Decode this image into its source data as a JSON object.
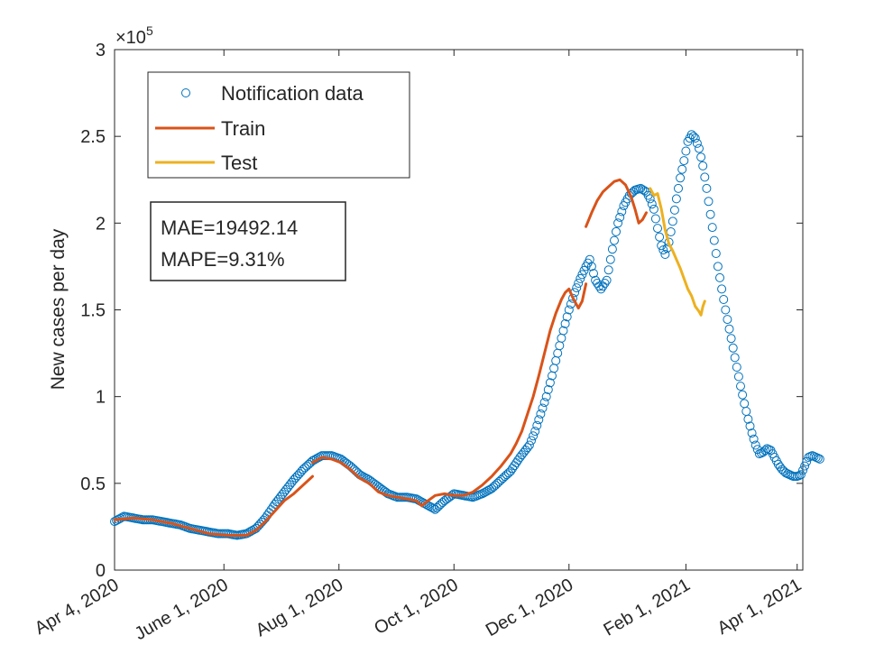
{
  "chart_data": {
    "type": "scatter+line",
    "title": "",
    "xlabel": "",
    "ylabel": "New cases per day",
    "y_exponent_label": "×10",
    "y_exponent": "5",
    "ylim": [
      0,
      3
    ],
    "y_ticks": [
      0,
      0.5,
      1,
      1.5,
      2,
      2.5,
      3
    ],
    "y_tick_labels": [
      "0",
      "0.5",
      "1",
      "1.5",
      "2",
      "2.5",
      "3"
    ],
    "xlim": [
      0,
      365
    ],
    "x_ticks": [
      0,
      58,
      119,
      180,
      241,
      303,
      362
    ],
    "x_tick_labels": [
      "Apr 4, 2020",
      "June 1, 2020",
      "Aug 1, 2020",
      "Oct 1, 2020",
      "Dec 1, 2020",
      "Feb 1, 2021",
      "Apr 1, 2021"
    ],
    "grid": false,
    "legend_position": "top-left",
    "legend": [
      {
        "name": "Notification data",
        "marker": "circle",
        "color": "#0072BD"
      },
      {
        "name": "Train",
        "marker": "line",
        "color": "#D95319"
      },
      {
        "name": "Test",
        "marker": "line",
        "color": "#EDB120"
      }
    ],
    "annotation": {
      "mae": "MAE=19492.14",
      "mape": "MAPE=9.31%"
    },
    "series": [
      {
        "name": "Notification data",
        "kind": "scatter",
        "color": "#0072BD",
        "keypoints": [
          [
            0,
            0.28
          ],
          [
            5,
            0.31
          ],
          [
            10,
            0.3
          ],
          [
            15,
            0.29
          ],
          [
            20,
            0.29
          ],
          [
            25,
            0.28
          ],
          [
            30,
            0.27
          ],
          [
            35,
            0.26
          ],
          [
            40,
            0.24
          ],
          [
            45,
            0.23
          ],
          [
            50,
            0.22
          ],
          [
            55,
            0.21
          ],
          [
            60,
            0.21
          ],
          [
            65,
            0.2
          ],
          [
            70,
            0.21
          ],
          [
            75,
            0.24
          ],
          [
            80,
            0.3
          ],
          [
            85,
            0.38
          ],
          [
            90,
            0.45
          ],
          [
            95,
            0.52
          ],
          [
            100,
            0.58
          ],
          [
            105,
            0.63
          ],
          [
            110,
            0.66
          ],
          [
            115,
            0.66
          ],
          [
            120,
            0.64
          ],
          [
            125,
            0.6
          ],
          [
            130,
            0.55
          ],
          [
            135,
            0.52
          ],
          [
            140,
            0.48
          ],
          [
            145,
            0.44
          ],
          [
            150,
            0.42
          ],
          [
            155,
            0.42
          ],
          [
            160,
            0.41
          ],
          [
            165,
            0.38
          ],
          [
            170,
            0.35
          ],
          [
            175,
            0.4
          ],
          [
            180,
            0.44
          ],
          [
            185,
            0.43
          ],
          [
            190,
            0.42
          ],
          [
            195,
            0.44
          ],
          [
            200,
            0.47
          ],
          [
            205,
            0.52
          ],
          [
            210,
            0.57
          ],
          [
            215,
            0.65
          ],
          [
            220,
            0.72
          ],
          [
            223,
            0.8
          ],
          [
            226,
            0.9
          ],
          [
            229,
            1.0
          ],
          [
            232,
            1.12
          ],
          [
            235,
            1.25
          ],
          [
            238,
            1.38
          ],
          [
            241,
            1.5
          ],
          [
            244,
            1.6
          ],
          [
            247,
            1.68
          ],
          [
            250,
            1.75
          ],
          [
            252,
            1.79
          ],
          [
            255,
            1.67
          ],
          [
            258,
            1.62
          ],
          [
            261,
            1.67
          ],
          [
            264,
            1.85
          ],
          [
            267,
            2.0
          ],
          [
            270,
            2.1
          ],
          [
            273,
            2.16
          ],
          [
            276,
            2.19
          ],
          [
            279,
            2.2
          ],
          [
            282,
            2.18
          ],
          [
            284,
            2.14
          ],
          [
            286,
            2.08
          ],
          [
            288,
            1.97
          ],
          [
            290,
            1.87
          ],
          [
            292,
            1.82
          ],
          [
            294,
            1.89
          ],
          [
            296,
            2.01
          ],
          [
            298,
            2.14
          ],
          [
            300,
            2.26
          ],
          [
            302,
            2.36
          ],
          [
            304,
            2.47
          ],
          [
            306,
            2.51
          ],
          [
            308,
            2.49
          ],
          [
            310,
            2.43
          ],
          [
            312,
            2.33
          ],
          [
            314,
            2.2
          ],
          [
            316,
            2.05
          ],
          [
            318,
            1.9
          ],
          [
            320,
            1.75
          ],
          [
            322,
            1.62
          ],
          [
            324,
            1.5
          ],
          [
            326,
            1.39
          ],
          [
            328,
            1.28
          ],
          [
            330,
            1.17
          ],
          [
            332,
            1.06
          ],
          [
            334,
            0.96
          ],
          [
            336,
            0.87
          ],
          [
            338,
            0.79
          ],
          [
            340,
            0.72
          ],
          [
            342,
            0.67
          ],
          [
            344,
            0.68
          ],
          [
            346,
            0.7
          ],
          [
            348,
            0.69
          ],
          [
            350,
            0.65
          ],
          [
            352,
            0.61
          ],
          [
            354,
            0.58
          ],
          [
            356,
            0.56
          ],
          [
            358,
            0.55
          ],
          [
            360,
            0.54
          ],
          [
            362,
            0.54
          ],
          [
            364,
            0.55
          ],
          [
            366,
            0.6
          ],
          [
            368,
            0.65
          ],
          [
            370,
            0.66
          ],
          [
            372,
            0.65
          ],
          [
            374,
            0.64
          ]
        ]
      },
      {
        "name": "Train",
        "kind": "line",
        "color": "#D95319",
        "segments": [
          [
            [
              0,
              0.29
            ],
            [
              10,
              0.3
            ],
            [
              20,
              0.29
            ],
            [
              30,
              0.27
            ],
            [
              40,
              0.24
            ],
            [
              50,
              0.21
            ],
            [
              60,
              0.2
            ],
            [
              70,
              0.2
            ],
            [
              75,
              0.23
            ],
            [
              80,
              0.28
            ],
            [
              85,
              0.34
            ],
            [
              90,
              0.4
            ],
            [
              95,
              0.44
            ],
            [
              100,
              0.49
            ],
            [
              105,
              0.54
            ]
          ],
          [
            [
              105,
              0.62
            ],
            [
              110,
              0.65
            ],
            [
              115,
              0.64
            ],
            [
              120,
              0.62
            ],
            [
              125,
              0.58
            ],
            [
              130,
              0.53
            ],
            [
              135,
              0.5
            ],
            [
              140,
              0.45
            ],
            [
              145,
              0.43
            ],
            [
              150,
              0.42
            ],
            [
              155,
              0.41
            ],
            [
              160,
              0.4
            ],
            [
              163,
              0.37
            ],
            [
              165,
              0.39
            ],
            [
              170,
              0.43
            ],
            [
              175,
              0.44
            ],
            [
              180,
              0.43
            ],
            [
              185,
              0.43
            ],
            [
              190,
              0.45
            ],
            [
              195,
              0.49
            ],
            [
              200,
              0.54
            ],
            [
              205,
              0.6
            ],
            [
              210,
              0.67
            ],
            [
              213,
              0.73
            ],
            [
              216,
              0.8
            ],
            [
              219,
              0.9
            ],
            [
              222,
              1.0
            ],
            [
              225,
              1.12
            ],
            [
              228,
              1.25
            ],
            [
              231,
              1.38
            ],
            [
              234,
              1.48
            ],
            [
              237,
              1.56
            ],
            [
              239,
              1.6
            ],
            [
              241,
              1.62
            ],
            [
              243,
              1.57
            ],
            [
              246,
              1.51
            ],
            [
              248,
              1.55
            ],
            [
              250,
              1.65
            ]
          ],
          [
            [
              250,
              1.98
            ],
            [
              253,
              2.06
            ],
            [
              256,
              2.13
            ],
            [
              259,
              2.18
            ],
            [
              262,
              2.21
            ],
            [
              265,
              2.24
            ],
            [
              268,
              2.25
            ],
            [
              271,
              2.22
            ],
            [
              274,
              2.15
            ],
            [
              276,
              2.08
            ],
            [
              278,
              2.0
            ],
            [
              280,
              2.02
            ],
            [
              282,
              2.06
            ]
          ]
        ]
      },
      {
        "name": "Test",
        "kind": "line",
        "color": "#EDB120",
        "segments": [
          [
            [
              284,
              2.2
            ],
            [
              286,
              2.16
            ],
            [
              288,
              2.17
            ],
            [
              290,
              2.08
            ],
            [
              292,
              1.96
            ],
            [
              294,
              1.88
            ],
            [
              296,
              1.84
            ],
            [
              298,
              1.79
            ],
            [
              300,
              1.74
            ],
            [
              302,
              1.68
            ],
            [
              304,
              1.62
            ],
            [
              306,
              1.58
            ],
            [
              308,
              1.52
            ],
            [
              310,
              1.49
            ],
            [
              311,
              1.47
            ],
            [
              312,
              1.52
            ],
            [
              313,
              1.55
            ]
          ]
        ]
      }
    ]
  }
}
